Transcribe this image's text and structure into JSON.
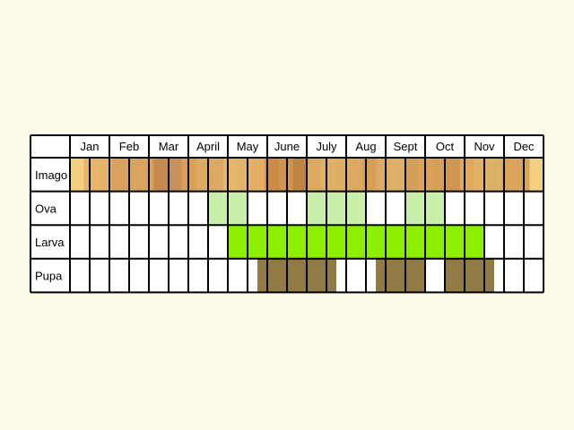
{
  "chart_data": {
    "type": "table",
    "title": "",
    "months": [
      "Jan",
      "Feb",
      "Mar",
      "April",
      "May",
      "June",
      "July",
      "Aug",
      "Sept",
      "Oct",
      "Nov",
      "Dec"
    ],
    "subdivisions_per_month": 2,
    "rows": [
      {
        "label": "Imago",
        "colors": [
          "#f5cf80",
          "#e9b56a",
          "#e6b36b",
          "#d9a05e",
          "#d8a55f",
          "#d9a35e",
          "#c78a4e",
          "#c8905c",
          "#da9e59",
          "#ddaa62",
          "#dba865",
          "#e6b76b",
          "#e3b26c",
          "#e3af64",
          "#cc8a46",
          "#cf9550",
          "#be8540",
          "#dda85f",
          "#e1b068",
          "#dfae65",
          "#dca962",
          "#d79e56",
          "#ddab66",
          "#e0b06b",
          "#d3a05c",
          "#dda35b",
          "#d6a056",
          "#d09552",
          "#dfa85e",
          "#e3b066",
          "#dbb166",
          "#dba45b",
          "#d9a45c",
          "#f5cf80"
        ]
      },
      {
        "label": "Ova",
        "cells": [
          0,
          0,
          0,
          0,
          0,
          0,
          0,
          1,
          1,
          0,
          0,
          0,
          1,
          1,
          1,
          0,
          0,
          1,
          1,
          0,
          0,
          0,
          0,
          0
        ],
        "color": "#c8f0aa"
      },
      {
        "label": "Larva",
        "cells": [
          0,
          0,
          0,
          0,
          0,
          0,
          0,
          0,
          1,
          1,
          1,
          1,
          1,
          1,
          1,
          1,
          1,
          1,
          1,
          1,
          1,
          0,
          0,
          0
        ],
        "color": "#8cf000"
      },
      {
        "label": "Pupa",
        "bars": [
          [
            9.5,
            13.5
          ],
          [
            15.5,
            18.0
          ],
          [
            19.0,
            21.5
          ]
        ],
        "color": "#917a45"
      }
    ]
  }
}
